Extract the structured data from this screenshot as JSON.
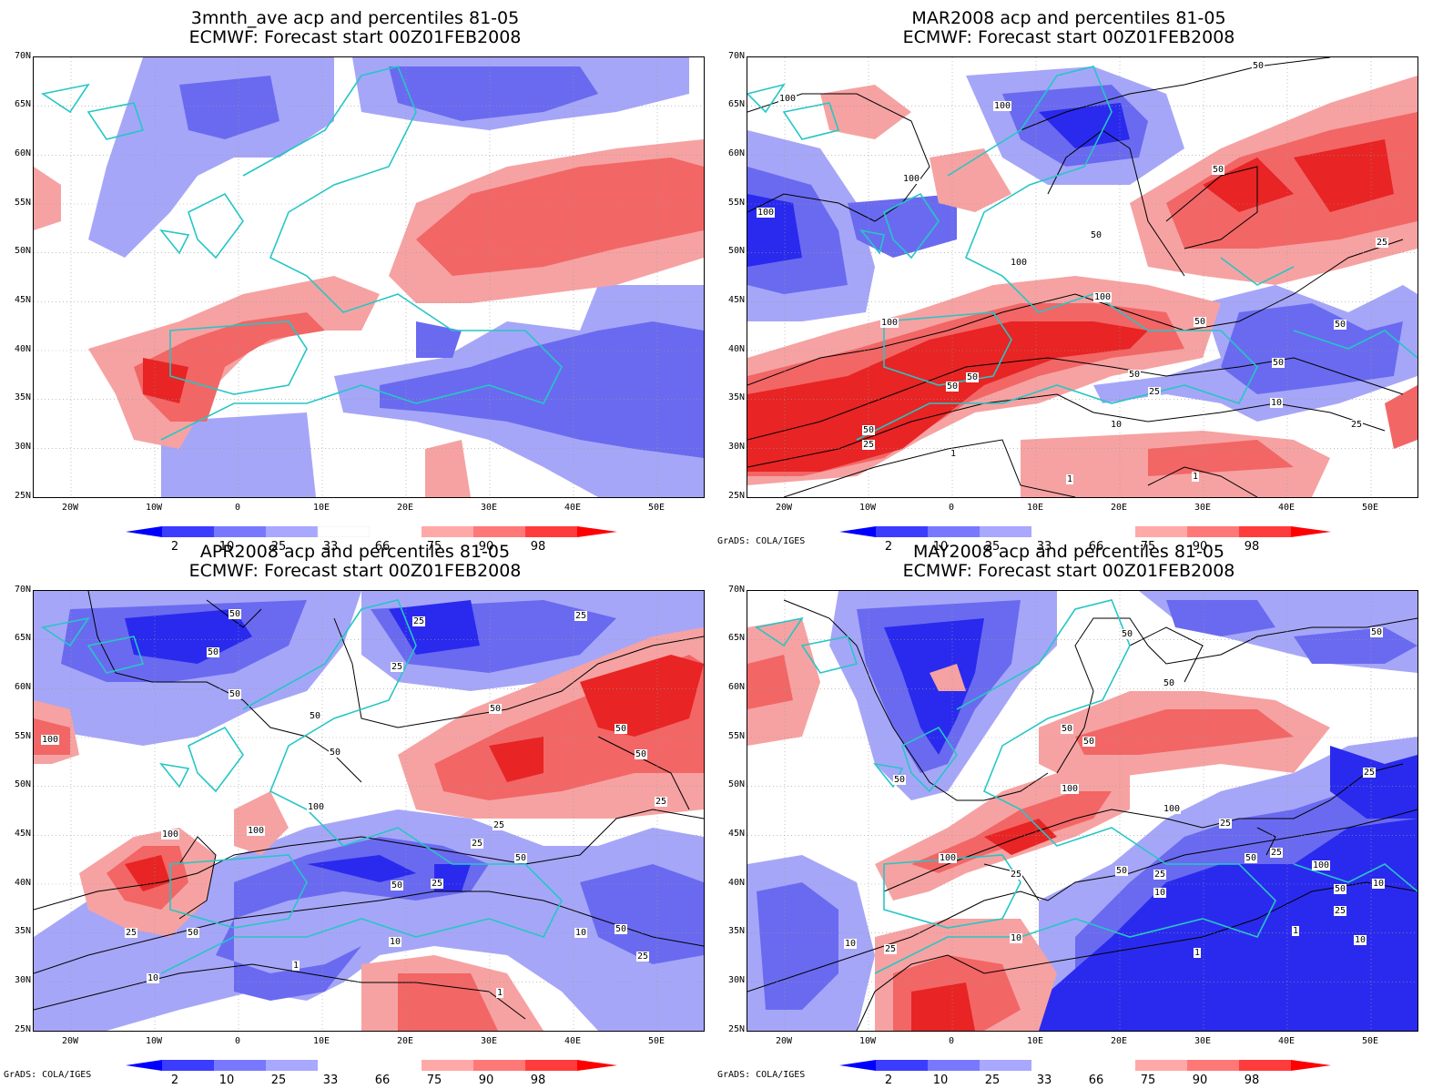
{
  "panels": [
    {
      "title_line1": "3mnth_ave acp and percentiles 81-05",
      "title_line2": "ECMWF: Forecast start 00Z01FEB2008",
      "credit": "",
      "contour_labels": []
    },
    {
      "title_line1": "MAR2008 acp and percentiles 81-05",
      "title_line2": "ECMWF: Forecast start 00Z01FEB2008",
      "credit": "GrADS: COLA/IGES",
      "contour_labels": [
        "100",
        "100",
        "100",
        "100",
        "50",
        "50",
        "50",
        "25",
        "100",
        "100",
        "100",
        "50",
        "50",
        "50",
        "50",
        "50",
        "50",
        "25",
        "10",
        "10",
        "25",
        "1",
        "1",
        "1",
        "50",
        "25"
      ]
    },
    {
      "title_line1": "APR2008 acp and percentiles 81-05",
      "title_line2": "ECMWF: Forecast start 00Z01FEB2008",
      "credit": "GrADS: COLA/IGES",
      "contour_labels": [
        "50",
        "50",
        "25",
        "25",
        "25",
        "50",
        "50",
        "50",
        "50",
        "100",
        "50",
        "50",
        "100",
        "100",
        "100",
        "25",
        "25",
        "50",
        "25",
        "25",
        "50",
        "50",
        "25",
        "10",
        "10",
        "50",
        "25",
        "1",
        "1",
        "10"
      ]
    },
    {
      "title_line1": "MAY2008 acp and percentiles 81-05",
      "title_line2": "ECMWF: Forecast start 00Z01FEB2008",
      "credit": "GrADS: COLA/IGES",
      "contour_labels": [
        "50",
        "50",
        "50",
        "50",
        "50",
        "50",
        "100",
        "100",
        "100",
        "25",
        "25",
        "50",
        "25",
        "50",
        "25",
        "10",
        "25",
        "10",
        "100",
        "50",
        "10",
        "25",
        "1",
        "10",
        "10",
        "1",
        "25"
      ]
    }
  ],
  "lat_labels": [
    "70N",
    "65N",
    "60N",
    "55N",
    "50N",
    "45N",
    "40N",
    "35N",
    "30N",
    "25N"
  ],
  "lon_labels": [
    "20W",
    "10W",
    "0",
    "10E",
    "20E",
    "30E",
    "40E",
    "50E"
  ],
  "colorbar": {
    "labels": [
      "2",
      "10",
      "25",
      "33",
      "66",
      "75",
      "90",
      "98"
    ],
    "colors": [
      "#0000ff",
      "#3c3cff",
      "#7878ff",
      "#a8a8ff",
      "#ffffff",
      "#ffa8a8",
      "#ff7878",
      "#ff3c3c",
      "#ff0000"
    ]
  },
  "colors": {
    "coast": "#26c6c6",
    "deep_blue": "#2a2aee",
    "mid_blue": "#6a6af0",
    "light_blue": "#a6a6f8",
    "light_red": "#f6a2a2",
    "mid_red": "#f26666",
    "deep_red": "#e82424"
  }
}
